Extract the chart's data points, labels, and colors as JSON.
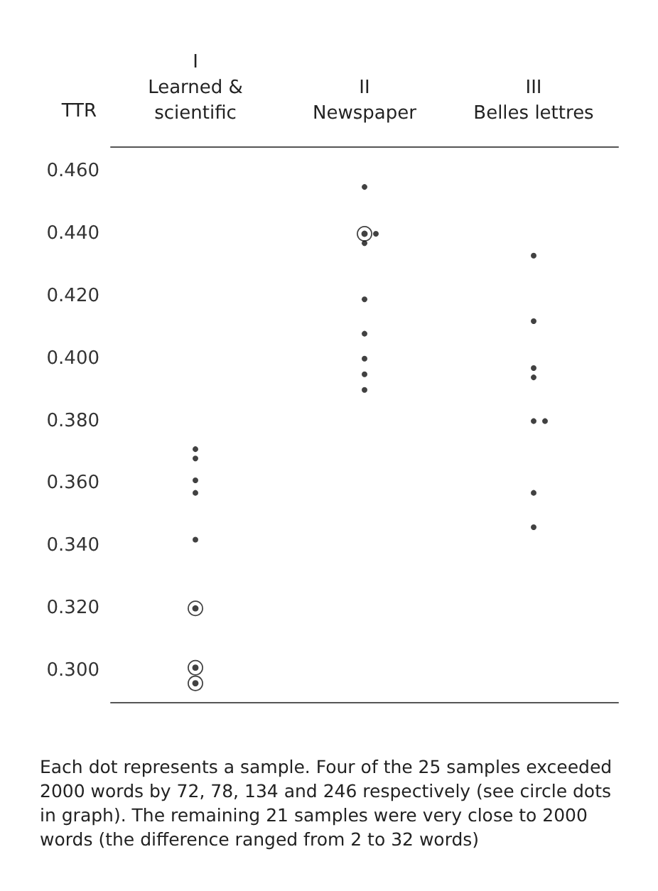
{
  "chart_data": {
    "type": "scatter",
    "ylabel": "TTR",
    "categories": [
      "I\nLearned &\nscientific",
      "II\nNewspaper",
      "III\nBelles lettres"
    ],
    "ylim": [
      0.29,
      0.468
    ],
    "yticks": [
      {
        "value": 0.3,
        "label": "0.300"
      },
      {
        "value": 0.32,
        "label": "0.320"
      },
      {
        "value": 0.34,
        "label": "0.340"
      },
      {
        "value": 0.36,
        "label": "0.360"
      },
      {
        "value": 0.38,
        "label": "0.380"
      },
      {
        "value": 0.4,
        "label": "0.400"
      },
      {
        "value": 0.42,
        "label": "0.420"
      },
      {
        "value": 0.44,
        "label": "0.440"
      },
      {
        "value": 0.46,
        "label": "0.460"
      }
    ],
    "series": [
      {
        "color": "#111111",
        "x": [
          "I\nLearned &\nscientific",
          "I\nLearned &\nscientific",
          "I\nLearned &\nscientific",
          "II\nNewspaper"
        ],
        "values": [
          0.32,
          0.301,
          0.296,
          0.44
        ]
      },
      {
        "color": "#111111",
        "x": [
          "I\nLearned &\nscientific",
          "I\nLearned &\nscientific",
          "I\nLearned &\nscientific",
          "I\nLearned &\nscientific",
          "I\nLearned &\nscientific",
          "II\nNewspaper",
          "II\nNewspaper",
          "II\nNewspaper",
          "II\nNewspaper",
          "II\nNewspaper",
          "II\nNewspaper",
          "II\nNewspaper",
          "II\nNewspaper",
          "III\nBelles lettres",
          "III\nBelles lettres",
          "III\nBelles lettres",
          "III\nBelles lettres",
          "III\nBelles lettres",
          "III\nBelles lettres",
          "III\nBelles lettres",
          "III\nBelles lettres"
        ],
        "values": [
          0.371,
          0.368,
          0.361,
          0.357,
          0.342,
          0.455,
          0.44,
          0.437,
          0.419,
          0.408,
          0.4,
          0.395,
          0.39,
          0.433,
          0.412,
          0.397,
          0.394,
          0.38,
          0.38,
          0.357,
          0.346
        ]
      }
    ],
    "marker": "circle",
    "grid": false,
    "annotations": [
      "Each dot represents a sample. Four of the 25 samples exceeded 2000 words by 72, 78, 134 and 246 respectively (see circle dots in graph). The remaining 21 samples were very close to 2000 words (the difference ranged from 2 to 32 words)"
    ]
  }
}
